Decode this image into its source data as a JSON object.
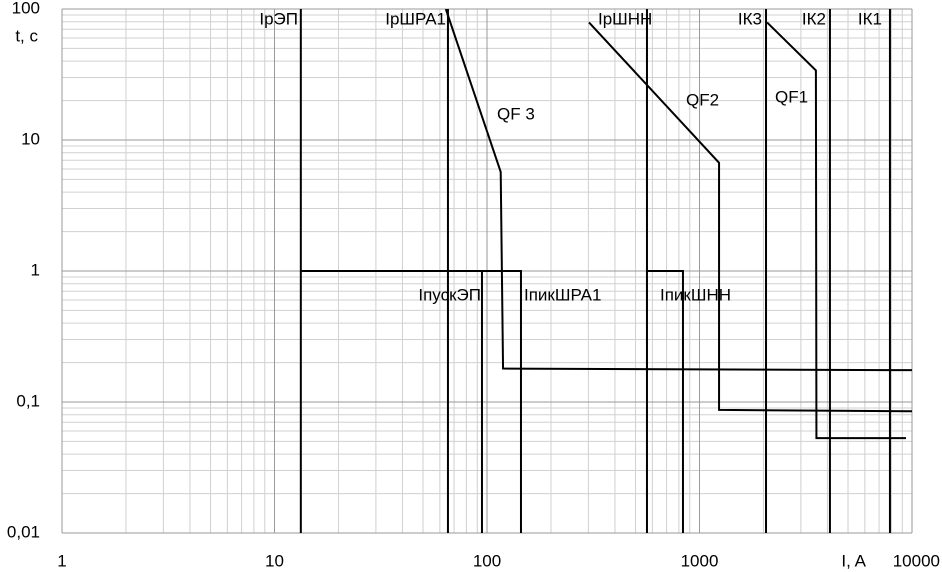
{
  "chart_data": {
    "type": "line",
    "log_x": true,
    "log_y": true,
    "grid": true,
    "color": "#000000",
    "x_label": "I, A",
    "y_label": "t, c",
    "xlim": [
      1,
      10000
    ],
    "ylim": [
      0.01,
      100
    ],
    "xticks": [
      1,
      10,
      100,
      1000,
      10000
    ],
    "yticks": [
      100,
      10,
      1,
      {
        "value": 0.1,
        "label": "0,1"
      },
      {
        "value": 0.01,
        "label": "0,01"
      }
    ],
    "series": [
      {
        "name": "IрЭП",
        "x": [
          13.3,
          13.3
        ],
        "values": [
          0.01,
          100
        ]
      },
      {
        "name": "IрШРА1",
        "x": [
          65.5,
          65.5
        ],
        "values": [
          0.01,
          100
        ]
      },
      {
        "name": "IпускЭП",
        "x": [
          94.7,
          94.7
        ],
        "values": [
          0.01,
          1
        ]
      },
      {
        "name": "IпикШРА1",
        "x": [
          13.3,
          144.5,
          144.5
        ],
        "values": [
          1,
          1,
          0.01
        ]
      },
      {
        "name": "IрШНН",
        "x": [
          566,
          566
        ],
        "values": [
          0.01,
          100
        ]
      },
      {
        "name": "IпикШНН",
        "x": [
          566,
          836,
          836
        ],
        "values": [
          1,
          1,
          0.01
        ]
      },
      {
        "name": "IК3",
        "x": [
          2056,
          2056
        ],
        "values": [
          0.01,
          100
        ]
      },
      {
        "name": "IК2",
        "x": [
          4110,
          4110
        ],
        "values": [
          0.01,
          100
        ]
      },
      {
        "name": "IК1",
        "x": [
          7875,
          7875
        ],
        "values": [
          0.01,
          100
        ]
      },
      {
        "name": "QF 3",
        "x": [
          64,
          116,
          119,
          10000
        ],
        "values": [
          100,
          5.7,
          0.18,
          0.175
        ]
      },
      {
        "name": "QF2",
        "x": [
          302,
          1236,
          1236,
          10000
        ],
        "values": [
          79,
          6.7,
          0.087,
          0.085
        ]
      },
      {
        "name": "QF1",
        "x": [
          2080,
          3530,
          3550,
          9370
        ],
        "values": [
          79,
          34,
          0.053,
          0.053
        ]
      }
    ]
  }
}
